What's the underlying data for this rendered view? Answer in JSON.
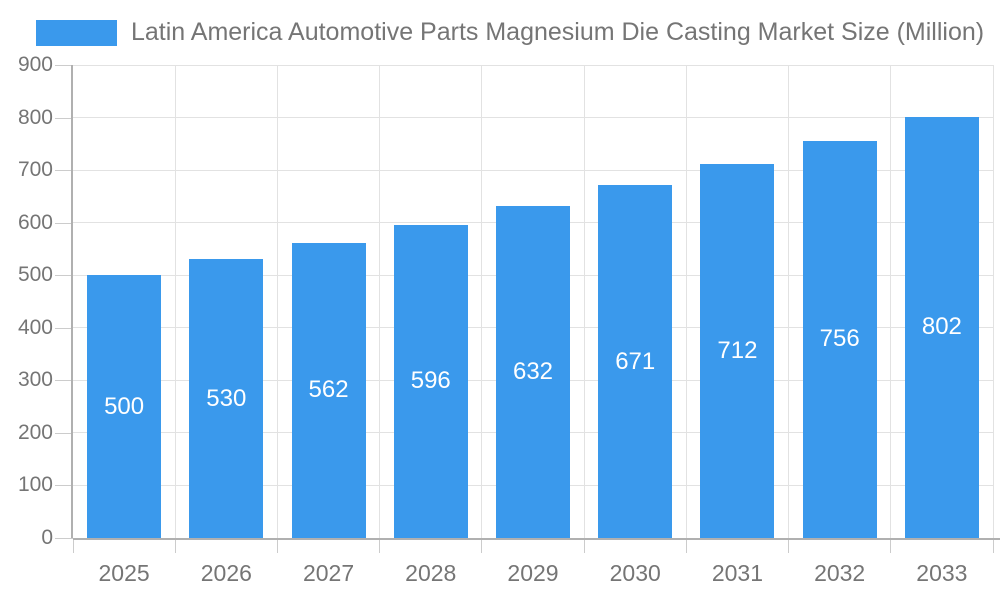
{
  "chart_data": {
    "type": "bar",
    "title": "Latin America Automotive Parts Magnesium Die Casting Market Size (Million)",
    "categories": [
      "2025",
      "2026",
      "2027",
      "2028",
      "2029",
      "2030",
      "2031",
      "2032",
      "2033"
    ],
    "values": [
      500,
      530,
      562,
      596,
      632,
      671,
      712,
      756,
      802
    ],
    "xlabel": "",
    "ylabel": "",
    "ylim": [
      0,
      900
    ],
    "ytick_step": 100,
    "grid": true,
    "legend_position": "top-left",
    "value_labels": "inside-center"
  },
  "colors": {
    "bar": "#3a99ec",
    "bar_label_text": "#ffffff",
    "title_text": "#757575",
    "axis_text": "#757575",
    "gridline": "#e2e2e2",
    "axis_line": "#b0b0b0",
    "tick": "#cccccc",
    "background": "#ffffff"
  }
}
